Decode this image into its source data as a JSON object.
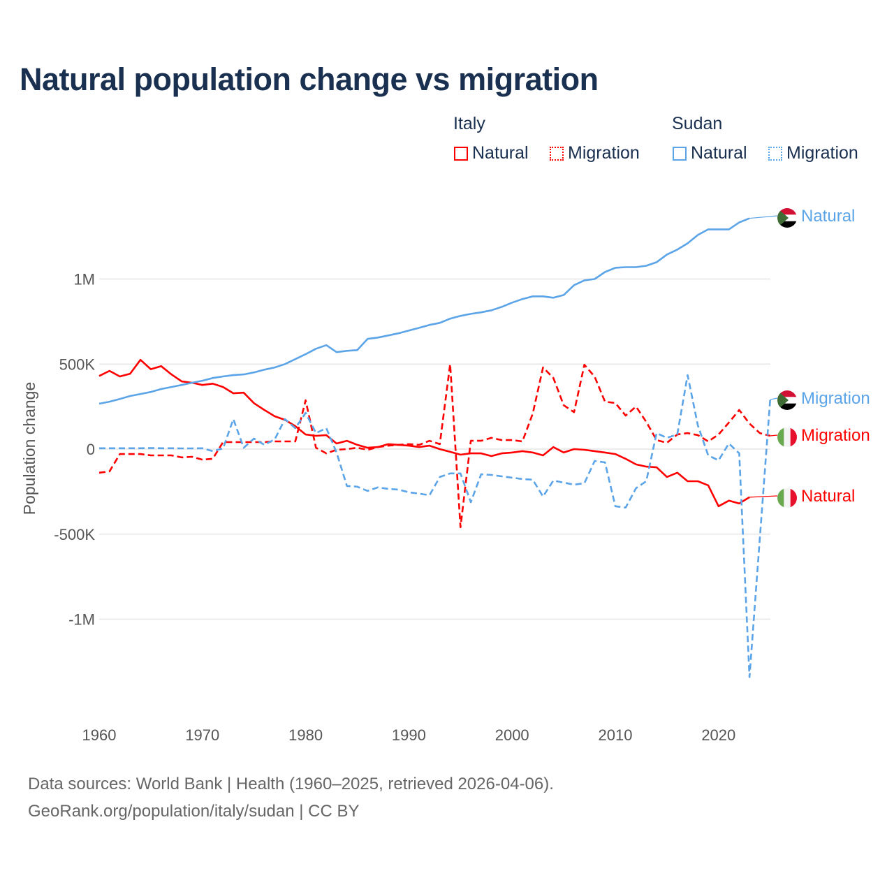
{
  "title": "Natural population change vs migration",
  "legend": {
    "groups": [
      {
        "name": "Italy",
        "items": [
          "Natural",
          "Migration"
        ]
      },
      {
        "name": "Sudan",
        "items": [
          "Natural",
          "Migration"
        ]
      }
    ]
  },
  "footer": {
    "line1": "Data sources: World Bank | Health (1960–2025, retrieved 2026-04-06).",
    "line2": "GeoRank.org/population/italy/sudan | CC BY"
  },
  "chart_data": {
    "type": "line",
    "title": "Natural population change vs migration",
    "xlabel": "",
    "ylabel": "Population change",
    "xlim": [
      1960,
      2025
    ],
    "ylim": [
      -1500000,
      1400000
    ],
    "x_ticks": [
      1960,
      1970,
      1980,
      1990,
      2000,
      2010,
      2020
    ],
    "x_tick_labels": [
      "1960",
      "1970",
      "1980",
      "1990",
      "2000",
      "2010",
      "2020"
    ],
    "y_ticks": [
      -1000000,
      -500000,
      0,
      500000,
      1000000
    ],
    "y_tick_labels": [
      "-1M",
      "-500K",
      "0",
      "500K",
      "1M"
    ],
    "grid": "horizontal",
    "legend_position": "top-right",
    "start_year": 1960,
    "units": "thousands",
    "series": [
      {
        "name": "Italy Natural",
        "country": "Italy",
        "kind": "Natural",
        "label": "Natural",
        "color": "#ff0000",
        "dashed": false,
        "values": [
          430,
          460,
          427,
          443,
          525,
          470,
          488,
          439,
          398,
          390,
          377,
          385,
          365,
          328,
          332,
          270,
          230,
          193,
          172,
          135,
          86,
          78,
          82,
          33,
          49,
          25,
          8,
          12,
          29,
          25,
          20,
          12,
          20,
          0,
          -16,
          -33,
          -25,
          -25,
          -41,
          -25,
          -20,
          -12,
          -20,
          -37,
          12,
          -20,
          0,
          -4,
          -12,
          -20,
          -29,
          -57,
          -90,
          -103,
          -107,
          -164,
          -139,
          -189,
          -189,
          -213,
          -336,
          -303,
          -320,
          -283
        ]
      },
      {
        "name": "Italy Migration",
        "country": "Italy",
        "kind": "Migration",
        "label": "Migration",
        "color": "#ff0000",
        "dashed": true,
        "values": [
          -139,
          -131,
          -29,
          -29,
          -29,
          -37,
          -37,
          -37,
          -49,
          -45,
          -62,
          -57,
          41,
          41,
          41,
          41,
          41,
          45,
          45,
          45,
          287,
          8,
          -25,
          -4,
          0,
          8,
          -4,
          12,
          20,
          25,
          29,
          25,
          49,
          29,
          500,
          -459,
          49,
          49,
          66,
          53,
          53,
          45,
          209,
          480,
          418,
          258,
          217,
          496,
          426,
          279,
          271,
          197,
          250,
          160,
          53,
          37,
          86,
          94,
          82,
          45,
          86,
          156,
          230,
          150,
          94,
          78
        ]
      },
      {
        "name": "Sudan Natural",
        "country": "Sudan",
        "kind": "Natural",
        "label": "Natural",
        "color": "#5ba4e8",
        "dashed": false,
        "values": [
          267,
          279,
          295,
          312,
          324,
          336,
          353,
          365,
          377,
          390,
          402,
          418,
          427,
          435,
          439,
          451,
          467,
          480,
          500,
          529,
          558,
          590,
          611,
          570,
          578,
          582,
          648,
          656,
          668,
          681,
          697,
          713,
          730,
          742,
          767,
          783,
          795,
          804,
          816,
          836,
          861,
          882,
          898,
          898,
          890,
          906,
          964,
          992,
          1000,
          1041,
          1066,
          1070,
          1070,
          1078,
          1099,
          1144,
          1173,
          1210,
          1259,
          1292,
          1292,
          1292,
          1333,
          1357
        ]
      },
      {
        "name": "Sudan Migration",
        "country": "Sudan",
        "kind": "Migration",
        "label": "Migration",
        "color": "#5ba4e8",
        "dashed": true,
        "values": [
          5,
          5,
          5,
          5,
          5,
          6,
          5,
          5,
          4,
          4,
          5,
          -12,
          4,
          176,
          8,
          62,
          25,
          57,
          176,
          123,
          213,
          94,
          123,
          -20,
          -217,
          -221,
          -246,
          -225,
          -234,
          -238,
          -254,
          -262,
          -271,
          -164,
          -143,
          -143,
          -312,
          -148,
          -152,
          -160,
          -168,
          -176,
          -180,
          -279,
          -185,
          -197,
          -209,
          -201,
          -70,
          -78,
          -336,
          -344,
          -230,
          -189,
          94,
          66,
          86,
          435,
          139,
          -37,
          -66,
          33,
          -25,
          -1341,
          null,
          291
        ]
      }
    ]
  }
}
